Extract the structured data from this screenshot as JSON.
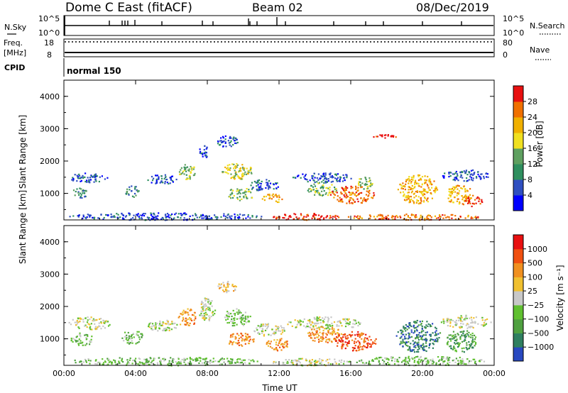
{
  "header": {
    "station": "Dome C East (fitACF)",
    "beam": "Beam 02",
    "date": "08/Dec/2019"
  },
  "panels": {
    "nsky": {
      "left_label": "N.Sky",
      "right_label": "N.Search",
      "left_ticks": [
        "10^5",
        "10^0"
      ],
      "right_ticks": [
        "10^5",
        "10^0"
      ]
    },
    "freq": {
      "left_label": "Freq.",
      "left_unit": "[MHz]",
      "right_label": "Nave",
      "left_ticks": [
        "18",
        "8"
      ],
      "right_ticks": [
        "80",
        "0"
      ]
    },
    "cpid": {
      "label": "CPID",
      "value": "normal 150"
    }
  },
  "chart_data": [
    {
      "type": "heatmap",
      "title": "",
      "xlabel": "",
      "ylabel": "Slant Range [km]",
      "xlim": [
        0,
        24
      ],
      "ylim": [
        180,
        4500
      ],
      "x_ticks": [
        "00:00",
        "04:00",
        "08:00",
        "12:00",
        "16:00",
        "20:00",
        "00:00"
      ],
      "y_ticks": [
        "1000",
        "2000",
        "3000",
        "4000"
      ],
      "colorbar": {
        "label": "Power [dB]",
        "ticks": [
          "4",
          "8",
          "12",
          "16",
          "20",
          "24",
          "28"
        ],
        "colors": [
          "#0000ff",
          "#2f4fc0",
          "#2f8f5f",
          "#5fa060",
          "#f0e020",
          "#f0b000",
          "#f07000",
          "#e81010"
        ]
      },
      "blobs": [
        {
          "t0": 0.2,
          "t1": 2.4,
          "r0": 1350,
          "r1": 1650,
          "level": 1
        },
        {
          "t0": 0.4,
          "t1": 1.3,
          "r0": 850,
          "r1": 1200,
          "level": 2
        },
        {
          "t0": 3.4,
          "t1": 4.2,
          "r0": 900,
          "r1": 1250,
          "level": 2
        },
        {
          "t0": 4.6,
          "t1": 6.3,
          "r0": 1300,
          "r1": 1600,
          "level": 1
        },
        {
          "t0": 6.3,
          "t1": 7.3,
          "r0": 1450,
          "r1": 1950,
          "level": 3
        },
        {
          "t0": 7.5,
          "t1": 8.1,
          "r0": 2100,
          "r1": 2500,
          "level": 1
        },
        {
          "t0": 8.5,
          "t1": 9.7,
          "r0": 2450,
          "r1": 2800,
          "level": 1
        },
        {
          "t0": 8.8,
          "t1": 10.5,
          "r0": 1450,
          "r1": 1950,
          "level": 4
        },
        {
          "t0": 9.0,
          "t1": 10.6,
          "r0": 800,
          "r1": 1200,
          "level": 3
        },
        {
          "t0": 10.2,
          "t1": 12.0,
          "r0": 1100,
          "r1": 1450,
          "level": 1
        },
        {
          "t0": 11.0,
          "t1": 12.2,
          "r0": 700,
          "r1": 1000,
          "level": 5
        },
        {
          "t0": 12.6,
          "t1": 16.2,
          "r0": 1350,
          "r1": 1650,
          "level": 1
        },
        {
          "t0": 13.5,
          "t1": 15.2,
          "r0": 950,
          "r1": 1350,
          "level": 3
        },
        {
          "t0": 14.8,
          "t1": 17.3,
          "r0": 700,
          "r1": 1250,
          "level": 6
        },
        {
          "t0": 16.3,
          "t1": 17.2,
          "r0": 1150,
          "r1": 1550,
          "level": 3
        },
        {
          "t0": 18.6,
          "t1": 20.8,
          "r0": 700,
          "r1": 1600,
          "level": 5
        },
        {
          "t0": 21.0,
          "t1": 23.7,
          "r0": 1400,
          "r1": 1750,
          "level": 1
        },
        {
          "t0": 21.3,
          "t1": 22.8,
          "r0": 650,
          "r1": 1300,
          "level": 5
        },
        {
          "t0": 22.3,
          "t1": 23.3,
          "r0": 600,
          "r1": 950,
          "level": 7
        },
        {
          "t0": 0.1,
          "t1": 11.0,
          "r0": 190,
          "r1": 420,
          "level": 1
        },
        {
          "t0": 11.5,
          "t1": 15.5,
          "r0": 190,
          "r1": 400,
          "level": 7
        },
        {
          "t0": 15.8,
          "t1": 23.2,
          "r0": 190,
          "r1": 380,
          "level": 6
        },
        {
          "t0": 17.0,
          "t1": 18.5,
          "r0": 2700,
          "r1": 2850,
          "level": 7
        }
      ]
    },
    {
      "type": "heatmap",
      "title": "",
      "xlabel": "Time UT",
      "ylabel": "Slant Range [km]",
      "xlim": [
        0,
        24
      ],
      "ylim": [
        180,
        4500
      ],
      "x_ticks": [
        "00:00",
        "04:00",
        "08:00",
        "12:00",
        "16:00",
        "20:00",
        "00:00"
      ],
      "y_ticks": [
        "1000",
        "2000",
        "3000",
        "4000"
      ],
      "colorbar": {
        "label": "Velocity [m s⁻¹]",
        "ticks": [
          "1000",
          "500",
          "100",
          "25",
          "−25",
          "−100",
          "−500",
          "−1000"
        ],
        "colors": [
          "#2848c0",
          "#2f7f60",
          "#4fa040",
          "#60c030",
          "#c8c8c8",
          "#f0c030",
          "#f09020",
          "#f05010",
          "#e81010"
        ]
      },
      "blobs": [
        {
          "t0": 0.2,
          "t1": 2.6,
          "r0": 1300,
          "r1": 1700,
          "level": 4
        },
        {
          "t0": 0.3,
          "t1": 1.6,
          "r0": 800,
          "r1": 1200,
          "level": 3
        },
        {
          "t0": 3.2,
          "t1": 4.4,
          "r0": 850,
          "r1": 1300,
          "level": 3
        },
        {
          "t0": 4.6,
          "t1": 6.5,
          "r0": 1250,
          "r1": 1600,
          "level": 4
        },
        {
          "t0": 6.3,
          "t1": 7.4,
          "r0": 1400,
          "r1": 1950,
          "level": 6
        },
        {
          "t0": 7.5,
          "t1": 8.4,
          "r0": 1500,
          "r1": 2300,
          "level": 4
        },
        {
          "t0": 8.5,
          "t1": 9.6,
          "r0": 2450,
          "r1": 2800,
          "level": 5
        },
        {
          "t0": 8.8,
          "t1": 10.4,
          "r0": 1400,
          "r1": 1950,
          "level": 3
        },
        {
          "t0": 9.0,
          "t1": 10.6,
          "r0": 800,
          "r1": 1200,
          "level": 6
        },
        {
          "t0": 10.5,
          "t1": 12.3,
          "r0": 1100,
          "r1": 1500,
          "level": 4
        },
        {
          "t0": 11.2,
          "t1": 12.6,
          "r0": 650,
          "r1": 1050,
          "level": 6
        },
        {
          "t0": 12.4,
          "t1": 16.5,
          "r0": 1300,
          "r1": 1700,
          "level": 4
        },
        {
          "t0": 13.5,
          "t1": 15.5,
          "r0": 900,
          "r1": 1400,
          "level": 6
        },
        {
          "t0": 15.0,
          "t1": 17.4,
          "r0": 650,
          "r1": 1250,
          "level": 7
        },
        {
          "t0": 18.5,
          "t1": 21.0,
          "r0": 600,
          "r1": 1600,
          "level": 1
        },
        {
          "t0": 21.0,
          "t1": 23.8,
          "r0": 1350,
          "r1": 1750,
          "level": 4
        },
        {
          "t0": 21.3,
          "t1": 23.0,
          "r0": 600,
          "r1": 1300,
          "level": 2
        },
        {
          "t0": 0.1,
          "t1": 11.0,
          "r0": 190,
          "r1": 450,
          "level": 3
        },
        {
          "t0": 11.5,
          "t1": 16.0,
          "r0": 190,
          "r1": 420,
          "level": 4
        },
        {
          "t0": 16.0,
          "t1": 23.5,
          "r0": 190,
          "r1": 480,
          "level": 3
        }
      ]
    }
  ]
}
